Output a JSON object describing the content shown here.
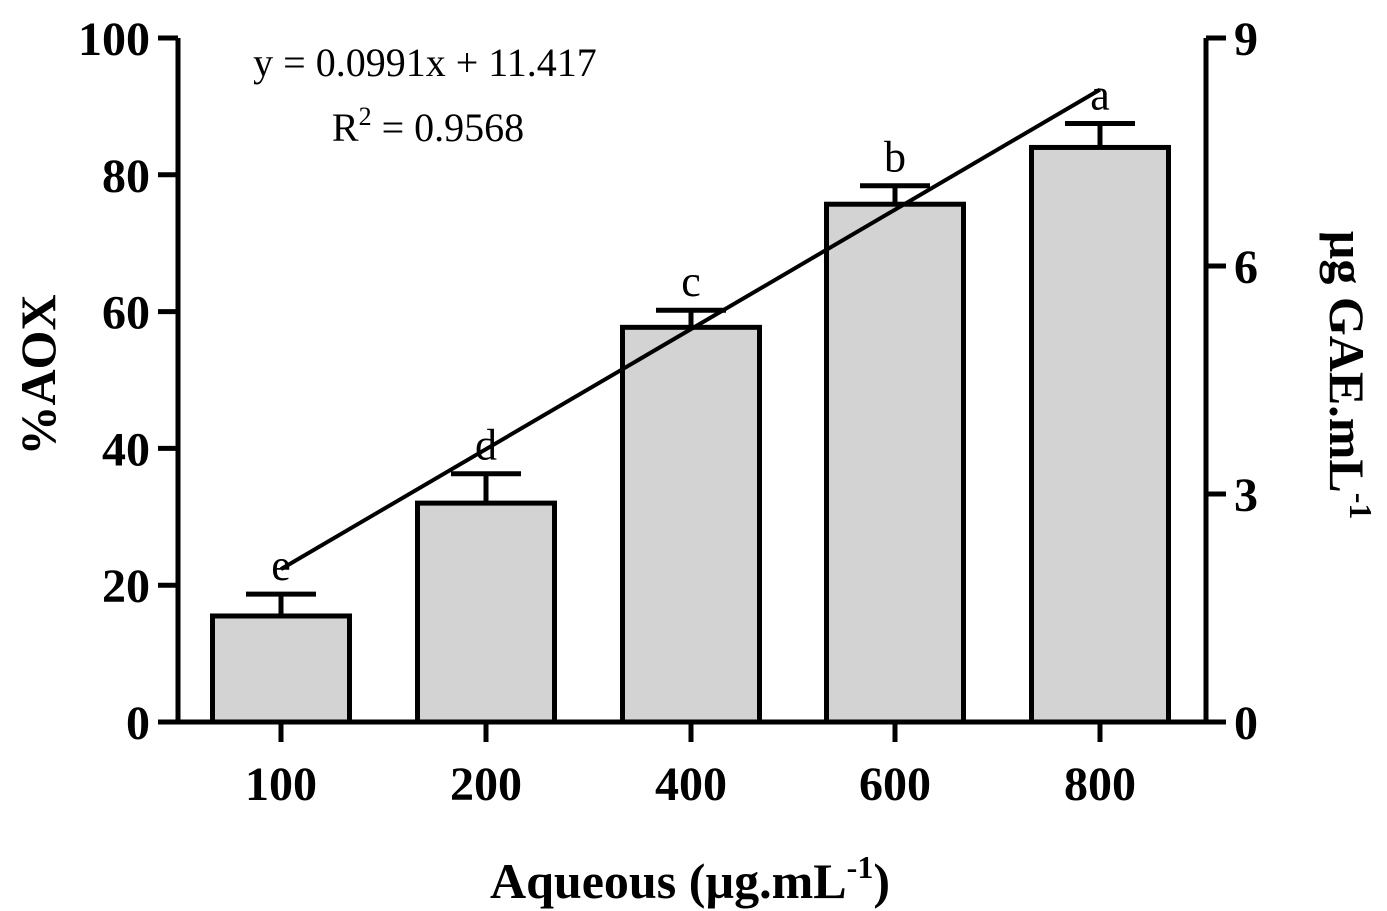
{
  "chart_data": {
    "type": "bar",
    "categories": [
      "100",
      "200",
      "400",
      "600",
      "800"
    ],
    "values": [
      15.5,
      32.0,
      57.7,
      75.7,
      84.0
    ],
    "errors": [
      3.2,
      4.3,
      2.5,
      2.7,
      3.5
    ],
    "significance_letters": [
      "e",
      "d",
      "c",
      "b",
      "a"
    ],
    "xlabel_main": "Aqueous (µg.mL",
    "xlabel_sup": "-1",
    "xlabel_close": ")",
    "ylabel": "%AOX",
    "y2label_main": "µg GAE.mL",
    "y2label_sup": "-1",
    "ylim": [
      0,
      100
    ],
    "yticks": [
      "0",
      "20",
      "40",
      "60",
      "80",
      "100"
    ],
    "y2lim": [
      0,
      9
    ],
    "y2ticks": [
      "0",
      "3",
      "6",
      "9"
    ],
    "trendline": {
      "equation": "y = 0.0991x + 11.417",
      "r2_prefix": "R",
      "r2_sup": "2",
      "r2_value": " = 0.9568",
      "slope": 0.0991,
      "intercept": 11.417,
      "x_start": 100,
      "x_end": 800
    },
    "colors": {
      "bar_fill": "#d3d3d3",
      "stroke": "#000000"
    }
  }
}
